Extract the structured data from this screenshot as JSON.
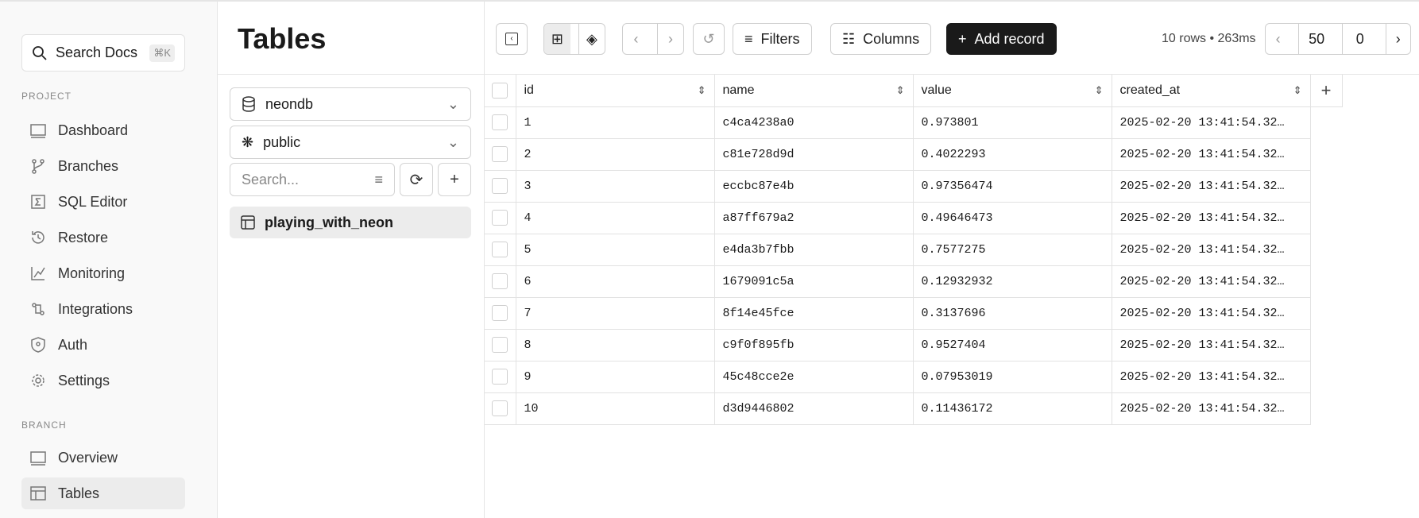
{
  "sidebar": {
    "search": {
      "label": "Search Docs",
      "shortcut": "⌘K"
    },
    "project_label": "PROJECT",
    "project_items": [
      {
        "label": "Dashboard",
        "icon": "dashboard-icon"
      },
      {
        "label": "Branches",
        "icon": "branch-icon"
      },
      {
        "label": "SQL Editor",
        "icon": "sql-icon"
      },
      {
        "label": "Restore",
        "icon": "restore-icon"
      },
      {
        "label": "Monitoring",
        "icon": "chart-icon"
      },
      {
        "label": "Integrations",
        "icon": "integrations-icon"
      },
      {
        "label": "Auth",
        "icon": "shield-icon"
      },
      {
        "label": "Settings",
        "icon": "gear-icon"
      }
    ],
    "branch_label": "BRANCH",
    "branch_items": [
      {
        "label": "Overview",
        "icon": "overview-icon"
      },
      {
        "label": "Tables",
        "icon": "table-icon",
        "active": true
      }
    ]
  },
  "panel": {
    "title": "Tables",
    "database": "neondb",
    "schema": "public",
    "search_placeholder": "Search...",
    "tables": [
      "playing_with_neon"
    ]
  },
  "toolbar": {
    "filters": "Filters",
    "columns": "Columns",
    "add_record": "Add record",
    "meta": "10 rows • 263ms",
    "limit": "50",
    "offset": "0"
  },
  "table": {
    "columns": [
      "id",
      "name",
      "value",
      "created_at"
    ],
    "rows": [
      [
        "1",
        "c4ca4238a0",
        "0.973801",
        "2025-02-20 13:41:54.32…"
      ],
      [
        "2",
        "c81e728d9d",
        "0.4022293",
        "2025-02-20 13:41:54.32…"
      ],
      [
        "3",
        "eccbc87e4b",
        "0.97356474",
        "2025-02-20 13:41:54.32…"
      ],
      [
        "4",
        "a87ff679a2",
        "0.49646473",
        "2025-02-20 13:41:54.32…"
      ],
      [
        "5",
        "e4da3b7fbb",
        "0.7577275",
        "2025-02-20 13:41:54.32…"
      ],
      [
        "6",
        "1679091c5a",
        "0.12932932",
        "2025-02-20 13:41:54.32…"
      ],
      [
        "7",
        "8f14e45fce",
        "0.3137696",
        "2025-02-20 13:41:54.32…"
      ],
      [
        "8",
        "c9f0f895fb",
        "0.9527404",
        "2025-02-20 13:41:54.32…"
      ],
      [
        "9",
        "45c48cce2e",
        "0.07953019",
        "2025-02-20 13:41:54.32…"
      ],
      [
        "10",
        "d3d9446802",
        "0.11436172",
        "2025-02-20 13:41:54.32…"
      ]
    ]
  }
}
